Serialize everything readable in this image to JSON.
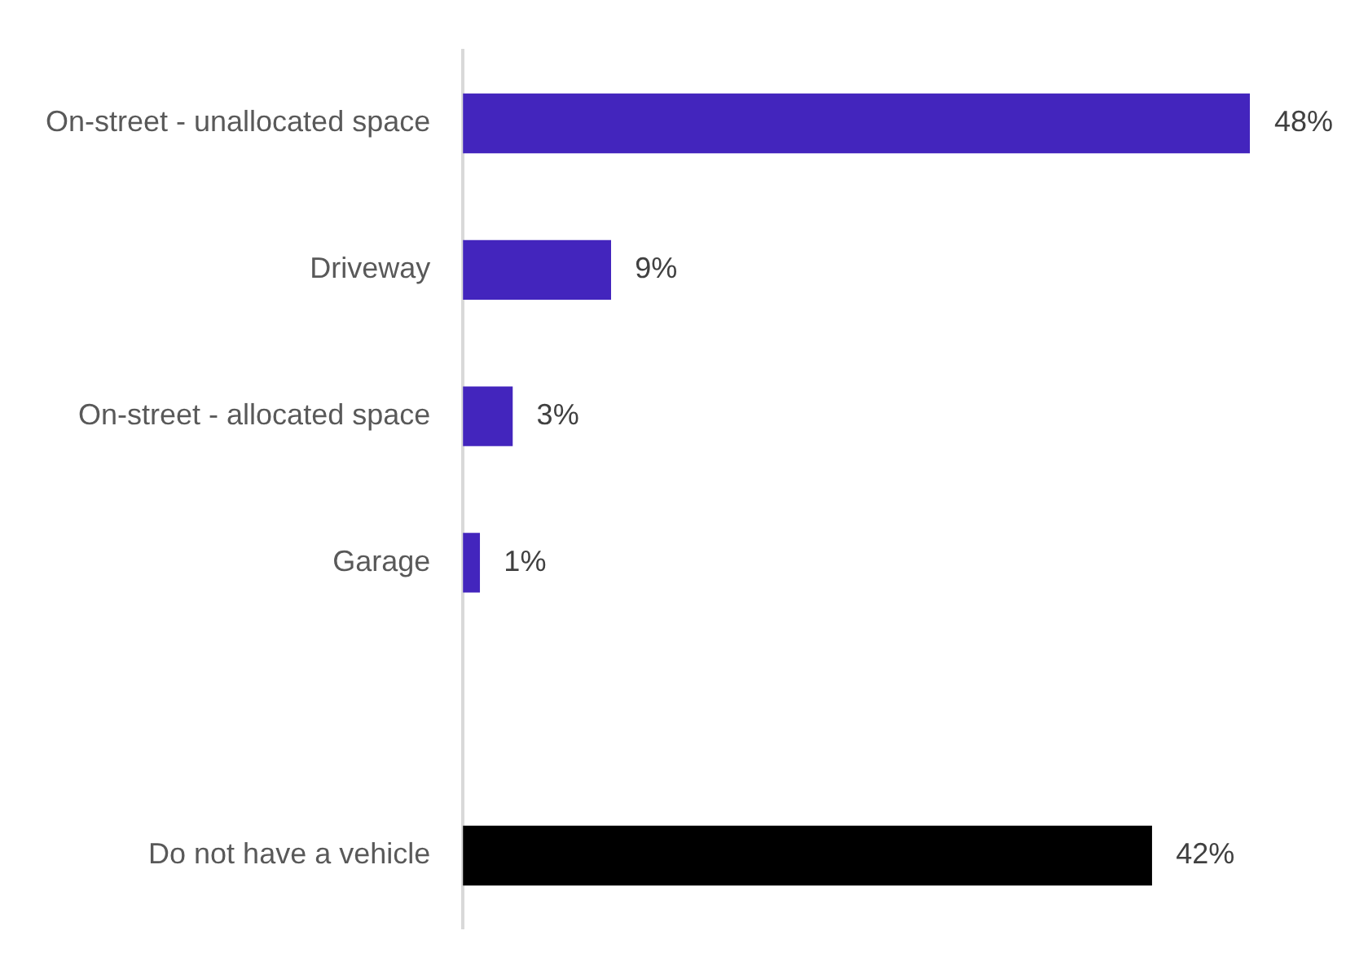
{
  "chart_data": {
    "type": "bar",
    "orientation": "horizontal",
    "categories": [
      "On-street - unallocated space",
      "Driveway",
      "On-street - allocated space",
      "Garage",
      null,
      "Do not have a vehicle"
    ],
    "values": [
      48,
      9,
      3,
      1,
      null,
      42
    ],
    "colors": [
      "#4325bd",
      "#4325bd",
      "#4325bd",
      "#4325bd",
      "#4325bd",
      "#000000"
    ],
    "value_labels": [
      "48%",
      "9%",
      "3%",
      "1%",
      null,
      "42%"
    ],
    "grid": false,
    "legend": false
  }
}
